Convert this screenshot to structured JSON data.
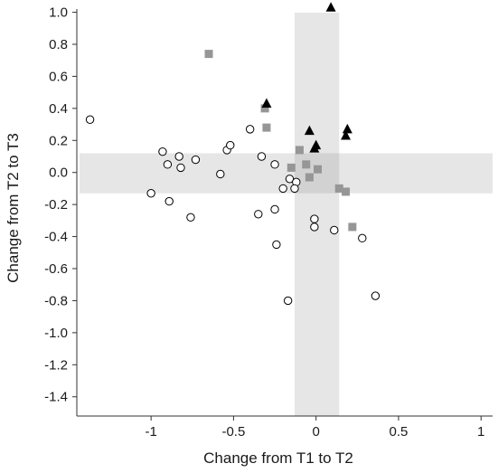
{
  "chart_data": {
    "type": "scatter",
    "xlabel": "Change from T1 to T2",
    "ylabel": "Change from T2 to T3",
    "xlim": [
      -1.45,
      1.07
    ],
    "ylim": [
      -1.52,
      1.02
    ],
    "x_ticks": [
      {
        "value": -1.0,
        "label": "-1"
      },
      {
        "value": -0.5,
        "label": "-0.5"
      },
      {
        "value": 0.0,
        "label": "0"
      },
      {
        "value": 0.5,
        "label": "0.5"
      },
      {
        "value": 1.0,
        "label": "1"
      }
    ],
    "y_ticks": [
      {
        "value": 1.0,
        "label": "1.0"
      },
      {
        "value": 0.8,
        "label": "0.8"
      },
      {
        "value": 0.6,
        "label": "0.6"
      },
      {
        "value": 0.4,
        "label": "0.4"
      },
      {
        "value": 0.2,
        "label": "0.2"
      },
      {
        "value": 0.0,
        "label": "0.0"
      },
      {
        "value": -0.2,
        "label": "-0.2"
      },
      {
        "value": -0.4,
        "label": "-0.4"
      },
      {
        "value": -0.6,
        "label": "-0.6"
      },
      {
        "value": -0.8,
        "label": "-0.8"
      },
      {
        "value": -1.0,
        "label": "-1.0"
      },
      {
        "value": -1.2,
        "label": "-1.2"
      },
      {
        "value": -1.4,
        "label": "-1.4"
      }
    ],
    "grid": false,
    "legend": "none",
    "bands": {
      "vertical": {
        "x0": -0.13,
        "x1": 0.14
      },
      "horizontal": {
        "y0": -0.13,
        "y1": 0.12
      },
      "band_color": "#e6e6e6",
      "overlap_color": "#d2d2d2"
    },
    "series": [
      {
        "marker": "circle",
        "color": "#000000",
        "points": [
          [
            -1.37,
            0.33
          ],
          [
            -0.93,
            0.13
          ],
          [
            -0.83,
            0.1
          ],
          [
            -0.9,
            0.05
          ],
          [
            -0.82,
            0.03
          ],
          [
            -0.73,
            0.08
          ],
          [
            -1.0,
            -0.13
          ],
          [
            -0.89,
            -0.18
          ],
          [
            -0.76,
            -0.28
          ],
          [
            -0.58,
            -0.01
          ],
          [
            -0.54,
            0.14
          ],
          [
            -0.52,
            0.17
          ],
          [
            -0.4,
            0.27
          ],
          [
            -0.33,
            0.1
          ],
          [
            -0.25,
            0.05
          ],
          [
            -0.16,
            -0.04
          ],
          [
            -0.2,
            -0.1
          ],
          [
            -0.12,
            -0.06
          ],
          [
            -0.13,
            -0.1
          ],
          [
            -0.35,
            -0.26
          ],
          [
            -0.25,
            -0.23
          ],
          [
            -0.24,
            -0.45
          ],
          [
            -0.17,
            -0.8
          ],
          [
            -0.01,
            -0.29
          ],
          [
            -0.01,
            -0.34
          ],
          [
            0.11,
            -0.36
          ],
          [
            0.28,
            -0.41
          ],
          [
            0.36,
            -0.77
          ]
        ]
      },
      {
        "marker": "square",
        "color": "#969696",
        "points": [
          [
            -0.65,
            0.74
          ],
          [
            -0.31,
            0.4
          ],
          [
            -0.3,
            0.28
          ],
          [
            -0.1,
            0.14
          ],
          [
            -0.06,
            0.05
          ],
          [
            -0.04,
            -0.03
          ],
          [
            0.01,
            0.02
          ],
          [
            -0.15,
            0.03
          ],
          [
            0.14,
            -0.1
          ],
          [
            0.18,
            -0.12
          ],
          [
            0.22,
            -0.34
          ]
        ]
      },
      {
        "marker": "triangle",
        "color": "#000000",
        "points": [
          [
            0.09,
            1.03
          ],
          [
            -0.3,
            0.43
          ],
          [
            -0.04,
            0.26
          ],
          [
            0.19,
            0.27
          ],
          [
            0.18,
            0.23
          ],
          [
            0.0,
            0.17
          ],
          [
            -0.01,
            0.15
          ]
        ]
      }
    ]
  }
}
